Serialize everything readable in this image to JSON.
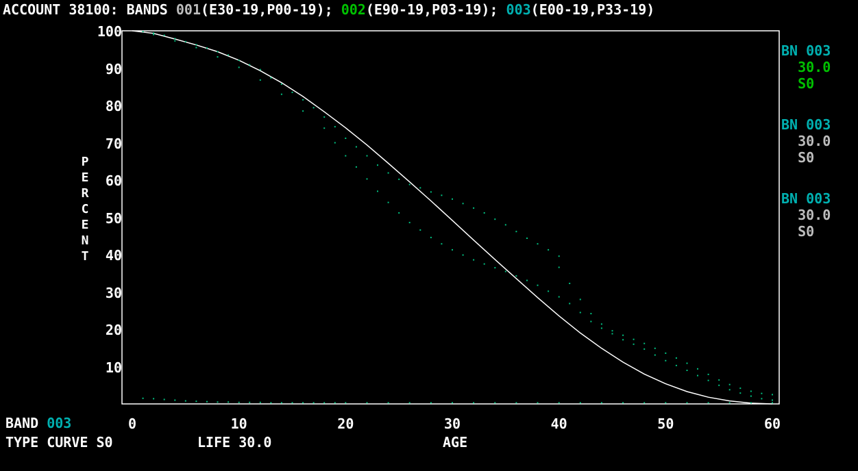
{
  "title": {
    "prefix": "ACCOUNT 38100: BANDS ",
    "b1_code": "001",
    "b1_rest": "(E30-19,P00-19); ",
    "b2_code": "002",
    "b2_rest": "(E90-19,P03-19); ",
    "b3_code": "003",
    "b3_rest": "(E00-19,P33-19)"
  },
  "legend": [
    {
      "band_label": "BN 003",
      "life": "30.0",
      "curve": "S0",
      "value_color": "#00c000"
    },
    {
      "band_label": "BN 003",
      "life": "30.0",
      "curve": "S0",
      "value_color": "#bdbdbd"
    },
    {
      "band_label": "BN 003",
      "life": "30.0",
      "curve": "S0",
      "value_color": "#bdbdbd"
    }
  ],
  "footer": {
    "band_label": "BAND",
    "band_value": "003",
    "type_label": "TYPE CURVE",
    "type_value": "S0",
    "life_label": "LIFE",
    "life_value": "30.0",
    "xlabel": "AGE"
  },
  "colors": {
    "curve": "#ffffff",
    "points": "#00c080",
    "axis": "#ffffff",
    "cyan": "#00b0b0",
    "green": "#00c000",
    "gray": "#bdbdbd"
  },
  "chart_data": {
    "type": "line",
    "ylabel": "PERCENT",
    "xlabel": "AGE",
    "xlim": [
      0,
      60
    ],
    "ylim": [
      0,
      100
    ],
    "xticks": [
      "0",
      "10",
      "20",
      "30",
      "40",
      "50",
      "60"
    ],
    "yticks": [
      "100",
      "90",
      "80",
      "70",
      "60",
      "50",
      "40",
      "30",
      "20",
      "10"
    ],
    "series": [
      {
        "name": "S0 30.0 fitted curve",
        "style": "line",
        "x": [
          0,
          2,
          4,
          6,
          8,
          10,
          12,
          14,
          16,
          18,
          20,
          22,
          24,
          26,
          28,
          30,
          32,
          34,
          36,
          38,
          40,
          42,
          44,
          46,
          48,
          50,
          52,
          54,
          56,
          58,
          60
        ],
        "y": [
          100,
          99.3,
          97.8,
          96.2,
          94.4,
          92.1,
          89.3,
          86.1,
          82.4,
          78.3,
          74.0,
          69.4,
          64.5,
          59.5,
          54.4,
          49.2,
          43.9,
          38.7,
          33.6,
          28.5,
          23.6,
          19.0,
          14.9,
          11.2,
          8.0,
          5.4,
          3.3,
          1.8,
          0.8,
          0.2,
          0
        ]
      },
      {
        "name": "observed band 003",
        "style": "dots",
        "x": [
          1,
          2,
          3,
          4,
          5,
          6,
          7,
          8,
          9,
          10,
          11,
          12,
          13,
          14,
          15,
          16,
          17,
          18,
          19,
          20,
          21,
          22,
          23,
          24,
          25,
          26,
          27,
          28,
          29,
          30,
          31,
          32,
          33,
          34,
          35,
          36,
          37,
          38,
          39,
          40
        ],
        "y": [
          99.8,
          99.4,
          98.8,
          97.9,
          97.1,
          96.3,
          95.4,
          94.4,
          93.5,
          92.1,
          90.9,
          89.6,
          87.4,
          85.7,
          83.5,
          81.5,
          79.4,
          76.9,
          74.3,
          71.2,
          68.9,
          66.5,
          64.0,
          61.9,
          60.2,
          58.8,
          57.9,
          56.8,
          55.9,
          54.9,
          53.7,
          52.5,
          51.2,
          49.5,
          48.0,
          46.2,
          44.4,
          42.9,
          41.3,
          39.6
        ]
      },
      {
        "name": "observed band 002",
        "style": "dots",
        "x": [
          2,
          4,
          6,
          8,
          10,
          12,
          14,
          16,
          18,
          19,
          20,
          21,
          22,
          23,
          24,
          25,
          26,
          27,
          28,
          29,
          30,
          31,
          32,
          33,
          34,
          35,
          36,
          37,
          38,
          39,
          40,
          41,
          42,
          43,
          44,
          45,
          46,
          47,
          48,
          49,
          50,
          51,
          52,
          53,
          54,
          55,
          56,
          57,
          58,
          59,
          60
        ],
        "y": [
          99.0,
          97.3,
          95.5,
          93.0,
          90.2,
          86.8,
          83.0,
          78.5,
          73.9,
          70.0,
          66.5,
          63.5,
          60.3,
          57.0,
          54.0,
          51.2,
          48.6,
          46.6,
          44.6,
          42.9,
          41.3,
          39.9,
          38.6,
          37.5,
          36.5,
          35.5,
          34.3,
          33.1,
          31.8,
          30.2,
          28.7,
          26.9,
          24.5,
          22.1,
          20.3,
          18.8,
          17.2,
          16.0,
          14.7,
          13.1,
          11.6,
          10.3,
          9.0,
          7.6,
          6.3,
          5.0,
          3.8,
          2.9,
          2.1,
          1.4,
          1.0
        ]
      },
      {
        "name": "observed band 001",
        "style": "dots",
        "x": [
          40,
          41,
          42,
          43,
          44,
          45,
          46,
          47,
          48,
          49,
          50,
          51,
          52,
          53,
          54,
          55,
          56,
          57,
          58,
          59,
          60
        ],
        "y": [
          36.6,
          32.3,
          28.0,
          24.2,
          21.4,
          19.6,
          18.4,
          17.3,
          16.2,
          14.9,
          13.6,
          12.3,
          10.9,
          9.4,
          7.9,
          6.4,
          5.2,
          4.2,
          3.4,
          2.8,
          2.5
        ]
      },
      {
        "name": "baseline",
        "style": "dots",
        "x": [
          1,
          2,
          3,
          4,
          5,
          6,
          7,
          8,
          9,
          10,
          11,
          12,
          13,
          14,
          15,
          16,
          17,
          18,
          19,
          20,
          22,
          24,
          26,
          28,
          30,
          32,
          34,
          36,
          38,
          40,
          42,
          44,
          46,
          48,
          50,
          52,
          54,
          56,
          58,
          60
        ],
        "y": [
          1.5,
          1.4,
          1.2,
          1.0,
          0.8,
          0.7,
          0.6,
          0.5,
          0.5,
          0.4,
          0.4,
          0.4,
          0.3,
          0.3,
          0.3,
          0.3,
          0.3,
          0.3,
          0.3,
          0.3,
          0.3,
          0.3,
          0.3,
          0.3,
          0.3,
          0.3,
          0.3,
          0.3,
          0.3,
          0.3,
          0.3,
          0.3,
          0.3,
          0.3,
          0.3,
          0.3,
          0.3,
          0.3,
          0.3,
          0.3
        ]
      }
    ]
  }
}
